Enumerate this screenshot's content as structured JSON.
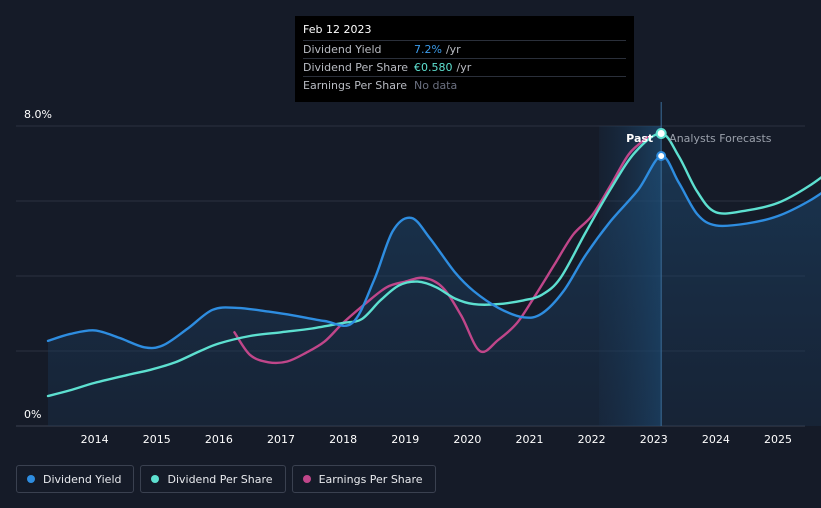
{
  "tooltip": {
    "date": "Feb 12 2023",
    "rows": [
      {
        "label": "Dividend Yield",
        "value": "7.2%",
        "unit": "/yr",
        "color": "#3b9bea"
      },
      {
        "label": "Dividend Per Share",
        "value": "€0.580",
        "unit": "/yr",
        "color": "#5de0d0"
      },
      {
        "label": "Earnings Per Share",
        "value": "No data",
        "unit": "",
        "color": "#6b7080"
      }
    ]
  },
  "regions": {
    "past": "Past",
    "forecast": "Analysts Forecasts"
  },
  "legend": [
    {
      "label": "Dividend Yield",
      "color": "#2e8de0"
    },
    {
      "label": "Dividend Per Share",
      "color": "#5de0d0"
    },
    {
      "label": "Earnings Per Share",
      "color": "#c0468a"
    }
  ],
  "chart_data": {
    "type": "line",
    "y_axis_labels": [
      "8.0%",
      "0%"
    ],
    "ylim": [
      0,
      8.0
    ],
    "xlim": [
      2013.25,
      2025.95
    ],
    "x_ticks": [
      "2014",
      "2015",
      "2016",
      "2017",
      "2018",
      "2019",
      "2020",
      "2021",
      "2022",
      "2023",
      "2024",
      "2025"
    ],
    "x_tick_values": [
      2014,
      2015,
      2016,
      2017,
      2018,
      2019,
      2020,
      2021,
      2022,
      2023,
      2024,
      2025
    ],
    "highlight_start": 2022.12,
    "cursor_x": 2023.12,
    "series": [
      {
        "name": "Dividend Yield",
        "color": "#2e8de0",
        "points": [
          [
            2013.25,
            2.27
          ],
          [
            2013.6,
            2.45
          ],
          [
            2014.0,
            2.55
          ],
          [
            2014.4,
            2.35
          ],
          [
            2014.8,
            2.1
          ],
          [
            2015.1,
            2.15
          ],
          [
            2015.5,
            2.6
          ],
          [
            2015.9,
            3.1
          ],
          [
            2016.3,
            3.15
          ],
          [
            2016.8,
            3.05
          ],
          [
            2017.2,
            2.95
          ],
          [
            2017.7,
            2.8
          ],
          [
            2018.15,
            2.75
          ],
          [
            2018.5,
            3.9
          ],
          [
            2018.8,
            5.2
          ],
          [
            2019.1,
            5.55
          ],
          [
            2019.4,
            5.0
          ],
          [
            2019.8,
            4.1
          ],
          [
            2020.1,
            3.6
          ],
          [
            2020.5,
            3.15
          ],
          [
            2020.9,
            2.9
          ],
          [
            2021.2,
            3.0
          ],
          [
            2021.55,
            3.6
          ],
          [
            2021.9,
            4.55
          ],
          [
            2022.3,
            5.45
          ],
          [
            2022.75,
            6.3
          ],
          [
            2023.12,
            7.2
          ],
          [
            2023.4,
            6.5
          ],
          [
            2023.7,
            5.65
          ],
          [
            2024.0,
            5.35
          ],
          [
            2024.5,
            5.4
          ],
          [
            2025.0,
            5.6
          ],
          [
            2025.5,
            6.0
          ],
          [
            2025.95,
            6.5
          ]
        ]
      },
      {
        "name": "Dividend Per Share",
        "color": "#5de0d0",
        "points": [
          [
            2013.25,
            0.8
          ],
          [
            2013.6,
            0.95
          ],
          [
            2014.0,
            1.15
          ],
          [
            2014.5,
            1.35
          ],
          [
            2014.9,
            1.5
          ],
          [
            2015.3,
            1.7
          ],
          [
            2015.7,
            2.0
          ],
          [
            2016.0,
            2.2
          ],
          [
            2016.5,
            2.4
          ],
          [
            2017.0,
            2.5
          ],
          [
            2017.5,
            2.6
          ],
          [
            2018.0,
            2.75
          ],
          [
            2018.3,
            2.85
          ],
          [
            2018.6,
            3.35
          ],
          [
            2018.9,
            3.75
          ],
          [
            2019.2,
            3.85
          ],
          [
            2019.5,
            3.7
          ],
          [
            2019.8,
            3.4
          ],
          [
            2020.1,
            3.25
          ],
          [
            2020.5,
            3.25
          ],
          [
            2020.9,
            3.35
          ],
          [
            2021.2,
            3.5
          ],
          [
            2021.5,
            3.95
          ],
          [
            2021.9,
            5.15
          ],
          [
            2022.3,
            6.3
          ],
          [
            2022.7,
            7.3
          ],
          [
            2023.12,
            7.8
          ],
          [
            2023.4,
            7.2
          ],
          [
            2023.7,
            6.25
          ],
          [
            2024.0,
            5.7
          ],
          [
            2024.5,
            5.75
          ],
          [
            2025.0,
            5.95
          ],
          [
            2025.5,
            6.4
          ],
          [
            2025.95,
            6.95
          ]
        ]
      },
      {
        "name": "Earnings Per Share",
        "color": "#c0468a",
        "points": [
          [
            2016.25,
            2.5
          ],
          [
            2016.5,
            1.9
          ],
          [
            2016.8,
            1.7
          ],
          [
            2017.1,
            1.72
          ],
          [
            2017.4,
            1.95
          ],
          [
            2017.7,
            2.25
          ],
          [
            2018.0,
            2.75
          ],
          [
            2018.35,
            3.25
          ],
          [
            2018.7,
            3.7
          ],
          [
            2019.0,
            3.85
          ],
          [
            2019.3,
            3.95
          ],
          [
            2019.6,
            3.7
          ],
          [
            2019.9,
            2.95
          ],
          [
            2020.2,
            2.0
          ],
          [
            2020.5,
            2.3
          ],
          [
            2020.8,
            2.75
          ],
          [
            2021.1,
            3.5
          ],
          [
            2021.4,
            4.3
          ],
          [
            2021.7,
            5.1
          ],
          [
            2022.0,
            5.6
          ],
          [
            2022.3,
            6.4
          ],
          [
            2022.6,
            7.25
          ],
          [
            2022.9,
            7.7
          ]
        ]
      }
    ]
  }
}
